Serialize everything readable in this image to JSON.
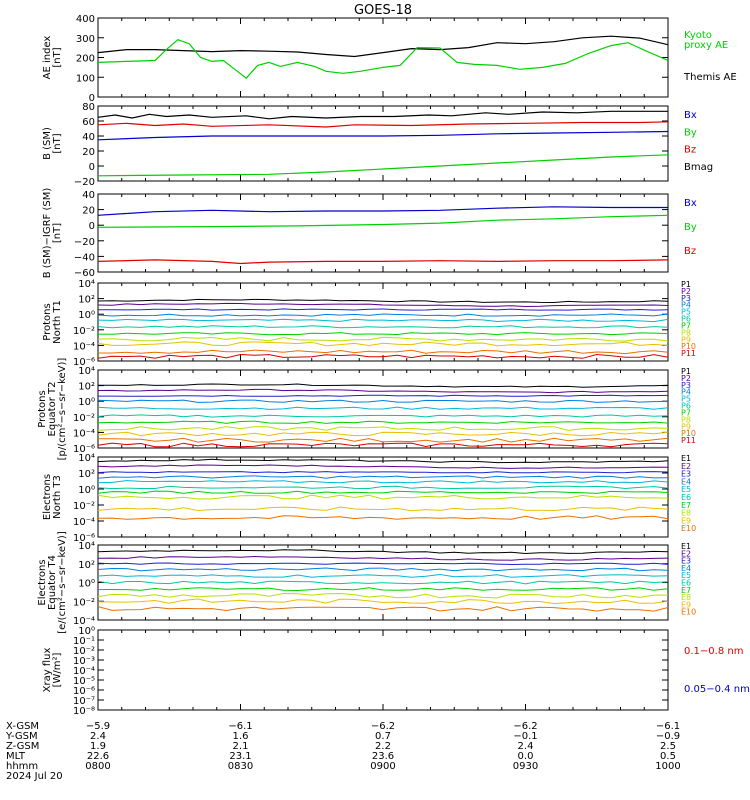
{
  "title": "GOES-18",
  "colors": {
    "black": "#000000",
    "green": "#00d000",
    "red": "#e00000",
    "blue": "#0000cc",
    "p": [
      "#000000",
      "#5a0090",
      "#2020d0",
      "#0080e0",
      "#00b8d8",
      "#00c8a0",
      "#00d000",
      "#b8e000",
      "#e8c000",
      "#e87000",
      "#d80000"
    ]
  },
  "chart_data": [
    {
      "id": "ae",
      "type": "line",
      "ylabel": [
        "AE index",
        "[nT]"
      ],
      "ylim": [
        0,
        400
      ],
      "yticks": [
        "0",
        "100",
        "200",
        "300",
        "400"
      ],
      "legend": [
        {
          "text": "Kyoto",
          "color": "#00d000"
        },
        {
          "text": "proxy AE",
          "color": "#00d000"
        },
        {
          "text": "Themis AE",
          "color": "#000000"
        }
      ],
      "series": [
        {
          "name": "Themis AE",
          "color": "#000000",
          "values": [
            [
              0,
              225
            ],
            [
              5,
              240
            ],
            [
              10,
              240
            ],
            [
              15,
              235
            ],
            [
              20,
              230
            ],
            [
              25,
              235
            ],
            [
              30,
              232
            ],
            [
              35,
              228
            ],
            [
              40,
              215
            ],
            [
              45,
              205
            ],
            [
              50,
              225
            ],
            [
              55,
              245
            ],
            [
              60,
              240
            ],
            [
              65,
              250
            ],
            [
              70,
              275
            ],
            [
              75,
              270
            ],
            [
              80,
              280
            ],
            [
              85,
              300
            ],
            [
              90,
              308
            ],
            [
              95,
              298
            ],
            [
              100,
              265
            ]
          ]
        },
        {
          "name": "Kyoto proxy AE",
          "color": "#00d000",
          "values": [
            [
              0,
              175
            ],
            [
              5,
              180
            ],
            [
              10,
              185
            ],
            [
              12,
              240
            ],
            [
              14,
              290
            ],
            [
              16,
              270
            ],
            [
              18,
              200
            ],
            [
              20,
              180
            ],
            [
              22,
              185
            ],
            [
              24,
              140
            ],
            [
              26,
              95
            ],
            [
              28,
              160
            ],
            [
              30,
              175
            ],
            [
              32,
              155
            ],
            [
              35,
              175
            ],
            [
              38,
              155
            ],
            [
              40,
              130
            ],
            [
              43,
              120
            ],
            [
              46,
              130
            ],
            [
              50,
              150
            ],
            [
              53,
              160
            ],
            [
              56,
              250
            ],
            [
              60,
              248
            ],
            [
              63,
              175
            ],
            [
              66,
              165
            ],
            [
              70,
              160
            ],
            [
              74,
              140
            ],
            [
              78,
              150
            ],
            [
              82,
              170
            ],
            [
              86,
              220
            ],
            [
              90,
              260
            ],
            [
              93,
              275
            ],
            [
              96,
              235
            ],
            [
              100,
              185
            ]
          ]
        }
      ]
    },
    {
      "id": "b",
      "type": "line",
      "ylabel": [
        "B (SM)",
        "[nT]"
      ],
      "ylim": [
        -20,
        80
      ],
      "yticks": [
        "−20",
        "0",
        "20",
        "40",
        "60",
        "80"
      ],
      "legend": [
        {
          "text": "Bx",
          "color": "#0000cc"
        },
        {
          "text": "By",
          "color": "#00d000"
        },
        {
          "text": "Bz",
          "color": "#e00000"
        },
        {
          "text": "Bmag",
          "color": "#000000"
        }
      ],
      "series": [
        {
          "name": "Bx",
          "color": "#0000cc",
          "values": [
            [
              0,
              35
            ],
            [
              10,
              38
            ],
            [
              20,
              40
            ],
            [
              35,
              40
            ],
            [
              50,
              40
            ],
            [
              60,
              41
            ],
            [
              70,
              43
            ],
            [
              80,
              44
            ],
            [
              90,
              45
            ],
            [
              100,
              46
            ]
          ]
        },
        {
          "name": "By",
          "color": "#00d000",
          "values": [
            [
              0,
              -13
            ],
            [
              15,
              -12
            ],
            [
              30,
              -11
            ],
            [
              40,
              -8
            ],
            [
              50,
              -4
            ],
            [
              60,
              0
            ],
            [
              70,
              4
            ],
            [
              80,
              8
            ],
            [
              90,
              12
            ],
            [
              100,
              15
            ]
          ]
        },
        {
          "name": "Bz",
          "color": "#e00000",
          "values": [
            [
              0,
              55
            ],
            [
              5,
              57
            ],
            [
              10,
              54
            ],
            [
              15,
              56
            ],
            [
              20,
              53
            ],
            [
              30,
              55
            ],
            [
              40,
              52
            ],
            [
              45,
              55
            ],
            [
              55,
              54
            ],
            [
              65,
              56
            ],
            [
              75,
              57
            ],
            [
              85,
              58
            ],
            [
              95,
              58
            ],
            [
              100,
              59
            ]
          ]
        },
        {
          "name": "Bmag",
          "color": "#000000",
          "values": [
            [
              0,
              65
            ],
            [
              3,
              68
            ],
            [
              6,
              64
            ],
            [
              9,
              69
            ],
            [
              12,
              66
            ],
            [
              16,
              68
            ],
            [
              20,
              65
            ],
            [
              26,
              67
            ],
            [
              30,
              63
            ],
            [
              34,
              66
            ],
            [
              40,
              64
            ],
            [
              46,
              66
            ],
            [
              52,
              66
            ],
            [
              58,
              68
            ],
            [
              62,
              67
            ],
            [
              68,
              71
            ],
            [
              72,
              69
            ],
            [
              78,
              72
            ],
            [
              84,
              71
            ],
            [
              90,
              73
            ],
            [
              100,
              73
            ]
          ]
        }
      ]
    },
    {
      "id": "bmigrf",
      "type": "line",
      "ylabel": [
        "B (SM)−IGRF (SM)",
        "[nT]"
      ],
      "ylim": [
        -65,
        45
      ],
      "yticks": [
        "−60",
        "−40",
        "−20",
        "0",
        "20",
        "40"
      ],
      "legend": [
        {
          "text": "Bx",
          "color": "#0000cc"
        },
        {
          "text": "By",
          "color": "#00d000"
        },
        {
          "text": "Bz",
          "color": "#e00000"
        }
      ],
      "series": [
        {
          "name": "Bx",
          "color": "#0000cc",
          "values": [
            [
              0,
              15
            ],
            [
              10,
              20
            ],
            [
              20,
              22
            ],
            [
              30,
              20
            ],
            [
              40,
              21
            ],
            [
              50,
              21
            ],
            [
              60,
              22
            ],
            [
              70,
              25
            ],
            [
              80,
              27
            ],
            [
              90,
              26
            ],
            [
              100,
              26
            ]
          ]
        },
        {
          "name": "By",
          "color": "#00d000",
          "values": [
            [
              0,
              -2
            ],
            [
              20,
              -1
            ],
            [
              35,
              0
            ],
            [
              50,
              2
            ],
            [
              60,
              4
            ],
            [
              70,
              8
            ],
            [
              80,
              10
            ],
            [
              90,
              13
            ],
            [
              100,
              15
            ]
          ]
        },
        {
          "name": "Bz",
          "color": "#e00000",
          "values": [
            [
              0,
              -50
            ],
            [
              10,
              -48
            ],
            [
              20,
              -50
            ],
            [
              25,
              -53
            ],
            [
              30,
              -51
            ],
            [
              40,
              -50
            ],
            [
              50,
              -50
            ],
            [
              60,
              -49
            ],
            [
              70,
              -50
            ],
            [
              80,
              -49
            ],
            [
              90,
              -49
            ],
            [
              100,
              -48
            ]
          ]
        }
      ]
    },
    {
      "id": "pn",
      "type": "line",
      "ylog": true,
      "ylabel": [
        "Protons",
        "North T1"
      ],
      "ylim": [
        -6,
        4
      ],
      "yticks": [
        "10⁻⁶",
        "10⁻⁴",
        "10⁻²",
        "10⁰",
        "10²",
        "10⁴"
      ],
      "legend": [
        {
          "text": "P1"
        },
        {
          "text": "P2"
        },
        {
          "text": "P3"
        },
        {
          "text": "P4"
        },
        {
          "text": "P5"
        },
        {
          "text": "P6"
        },
        {
          "text": "P7"
        },
        {
          "text": "P8"
        },
        {
          "text": "P9"
        },
        {
          "text": "P10"
        },
        {
          "text": "P11"
        }
      ],
      "levels": [
        1.7,
        1.2,
        0.6,
        -0.1,
        -0.8,
        -1.6,
        -2.5,
        -3.2,
        -3.8,
        -4.8,
        -5.4
      ]
    },
    {
      "id": "pe",
      "type": "line",
      "ylog": true,
      "ylabel": [
        "Protons",
        "Equator T2",
        "[p/(cm²−s−sr−keV)]"
      ],
      "ylim": [
        -6,
        4
      ],
      "yticks": [
        "10⁻⁶",
        "10⁻⁴",
        "10⁻²",
        "10⁰",
        "10²",
        "10⁴"
      ],
      "legend": [
        {
          "text": "P1"
        },
        {
          "text": "P2"
        },
        {
          "text": "P3"
        },
        {
          "text": "P4"
        },
        {
          "text": "P5"
        },
        {
          "text": "P6"
        },
        {
          "text": "P7"
        },
        {
          "text": "P8"
        },
        {
          "text": "P9"
        },
        {
          "text": "P10"
        },
        {
          "text": "P11"
        }
      ],
      "levels": [
        2.0,
        1.3,
        0.7,
        0.0,
        -0.9,
        -1.9,
        -2.7,
        -3.5,
        -4.2,
        -5.0,
        -5.6
      ]
    },
    {
      "id": "en",
      "type": "line",
      "ylog": true,
      "ylabel": [
        "Electrons",
        "North T3"
      ],
      "ylim": [
        -6,
        4
      ],
      "yticks": [
        "10⁻⁶",
        "10⁻⁴",
        "10⁻²",
        "10⁰",
        "10²",
        "10⁴"
      ],
      "legend": [
        {
          "text": "E1"
        },
        {
          "text": "E2"
        },
        {
          "text": "E3"
        },
        {
          "text": "E4"
        },
        {
          "text": "E5"
        },
        {
          "text": "E6"
        },
        {
          "text": "E7"
        },
        {
          "text": "E8"
        },
        {
          "text": "E9"
        },
        {
          "text": "E10"
        }
      ],
      "levels": [
        3.5,
        2.8,
        2.1,
        1.5,
        0.9,
        0.2,
        -0.4,
        -1.0,
        -2.5,
        -3.6
      ]
    },
    {
      "id": "ee",
      "type": "line",
      "ylog": true,
      "ylabel": [
        "Electrons",
        "Equator T4",
        "[e/(cm²−s−sr−keV)]"
      ],
      "ylim": [
        -4,
        4
      ],
      "yticks": [
        "10⁻⁴",
        "10⁻²",
        "10⁰",
        "10²",
        "10⁴"
      ],
      "legend": [
        {
          "text": "E1"
        },
        {
          "text": "E2"
        },
        {
          "text": "E3"
        },
        {
          "text": "E4"
        },
        {
          "text": "E5"
        },
        {
          "text": "E6"
        },
        {
          "text": "E7"
        },
        {
          "text": "E8"
        },
        {
          "text": "E9"
        },
        {
          "text": "E10"
        }
      ],
      "levels": [
        3.3,
        2.6,
        2.0,
        1.4,
        0.7,
        0.0,
        -0.7,
        -1.4,
        -2.0,
        -2.8
      ]
    },
    {
      "id": "xray",
      "type": "line",
      "ylog": true,
      "ylabel": [
        "Xray flux",
        "[W/m²]"
      ],
      "ylim": [
        -8,
        0
      ],
      "yticks": [
        "10⁻⁸",
        "10⁻⁷",
        "10⁻⁶",
        "10⁻⁵",
        "10⁻⁴",
        "10⁻³",
        "10⁻²",
        "10⁻¹",
        "10⁰"
      ],
      "legend": [
        {
          "text": "0.1−0.8 nm",
          "color": "#e00000"
        },
        {
          "text": "0.05−0.4 nm",
          "color": "#0000cc"
        }
      ],
      "series": []
    }
  ],
  "footer": {
    "rows": [
      {
        "label": "X-GSM",
        "values": [
          "−5.9",
          "−6.1",
          "−6.2",
          "−6.2",
          "−6.1"
        ]
      },
      {
        "label": "Y-GSM",
        "values": [
          "2.4",
          "1.6",
          "0.7",
          "−0.1",
          "−0.9"
        ]
      },
      {
        "label": "Z-GSM",
        "values": [
          "1.9",
          "2.1",
          "2.2",
          "2.4",
          "2.5"
        ]
      },
      {
        "label": "MLT",
        "values": [
          "22.6",
          "23.1",
          "23.6",
          "0.0",
          "0.5"
        ]
      },
      {
        "label": "hhmm",
        "values": [
          "0800",
          "0830",
          "0900",
          "0930",
          "1000"
        ]
      }
    ],
    "date": "2024 Jul 20"
  }
}
